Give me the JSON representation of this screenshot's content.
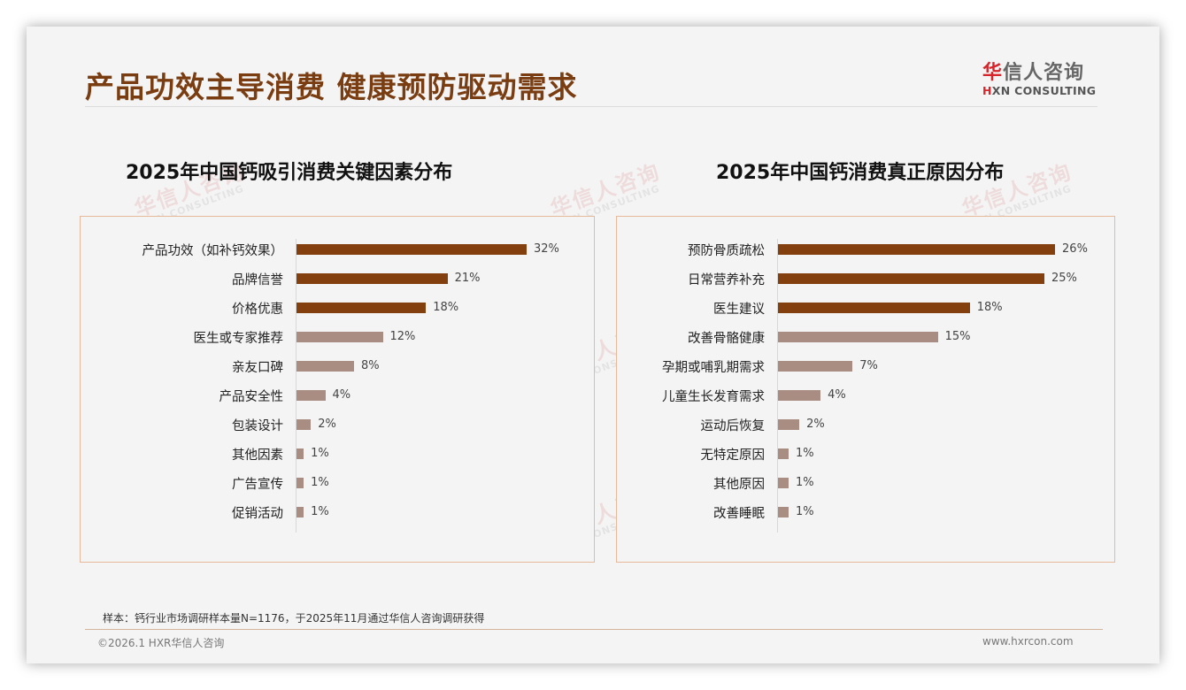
{
  "header": {
    "title": "产品功效主导消费 健康预防驱动需求",
    "logo_cn_first": "华",
    "logo_cn_rest": "信人咨询",
    "logo_en_first": "H",
    "logo_en_rest": "XN CONSULTING"
  },
  "colors": {
    "title": "#7a3d12",
    "bar_dark": "#843f0f",
    "bar_light": "#a98c82",
    "panel_border": "#e6b99a",
    "logo_red": "#d6262b"
  },
  "watermark": {
    "cn": "华信人咨询",
    "en": "HXN CONSULTING"
  },
  "chart_data": [
    {
      "type": "bar",
      "orientation": "horizontal",
      "title": "2025年中国钙吸引消费关键因素分布",
      "categories": [
        "产品功效（如补钙效果）",
        "品牌信誉",
        "价格优惠",
        "医生或专家推荐",
        "亲友口碑",
        "产品安全性",
        "包装设计",
        "其他因素",
        "广告宣传",
        "促销活动"
      ],
      "values": [
        32,
        21,
        18,
        12,
        8,
        4,
        2,
        1,
        1,
        1
      ],
      "value_labels": [
        "32%",
        "21%",
        "18%",
        "12%",
        "8%",
        "4%",
        "2%",
        "1%",
        "1%",
        "1%"
      ],
      "highlight_top_n": 3,
      "unit": "%",
      "xlabel": "",
      "ylabel": "",
      "grid": false,
      "legend": "none"
    },
    {
      "type": "bar",
      "orientation": "horizontal",
      "title": "2025年中国钙消费真正原因分布",
      "categories": [
        "预防骨质疏松",
        "日常营养补充",
        "医生建议",
        "改善骨骼健康",
        "孕期或哺乳期需求",
        "儿童生长发育需求",
        "运动后恢复",
        "无特定原因",
        "其他原因",
        "改善睡眠"
      ],
      "values": [
        26,
        25,
        18,
        15,
        7,
        4,
        2,
        1,
        1,
        1
      ],
      "value_labels": [
        "26%",
        "25%",
        "18%",
        "15%",
        "7%",
        "4%",
        "2%",
        "1%",
        "1%",
        "1%"
      ],
      "highlight_top_n": 3,
      "unit": "%",
      "xlabel": "",
      "ylabel": "",
      "grid": false,
      "legend": "none"
    }
  ],
  "footer": {
    "note": "样本：钙行业市场调研样本量N=1176，于2025年11月通过华信人咨询调研获得",
    "copyright": "©2026.1 HXR华信人咨询",
    "website": "www.hxrcon.com"
  }
}
